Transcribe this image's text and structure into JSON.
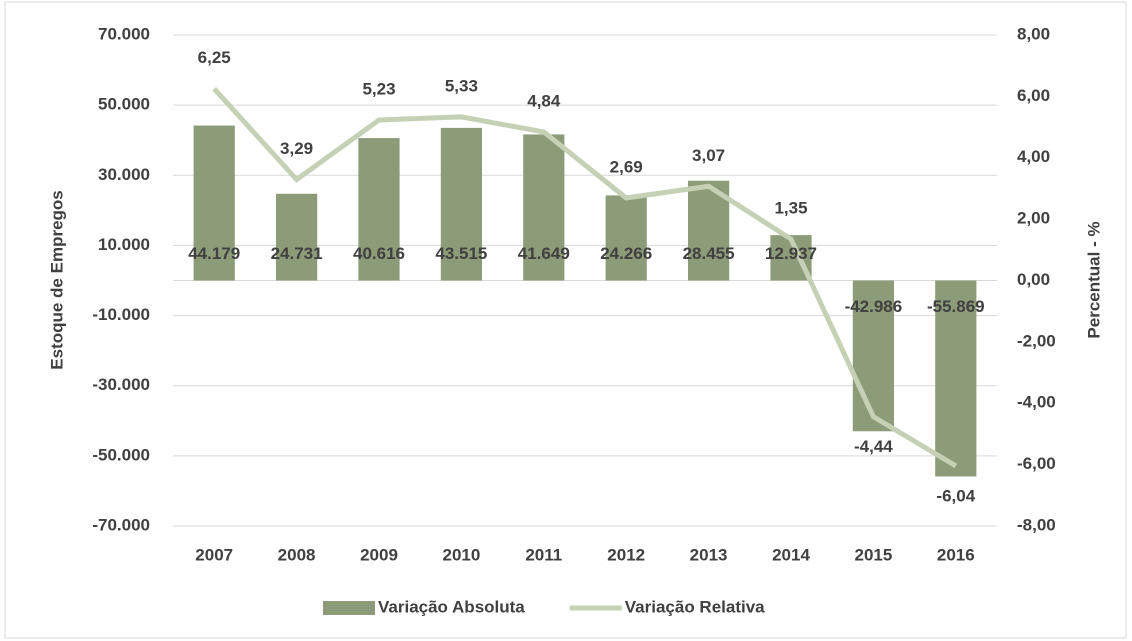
{
  "chart_data": {
    "type": "bar",
    "categories": [
      "2007",
      "2008",
      "2009",
      "2010",
      "2011",
      "2012",
      "2013",
      "2014",
      "2015",
      "2016"
    ],
    "series": [
      {
        "name": "Variação Absoluta",
        "type": "bar",
        "axis": "y",
        "color": "#8c9b78",
        "values": [
          44179,
          24731,
          40616,
          43515,
          41649,
          24266,
          28455,
          12937,
          -42986,
          -55869
        ],
        "value_labels": [
          "44.179",
          "24.731",
          "40.616",
          "43.515",
          "41.649",
          "24.266",
          "28.455",
          "12.937",
          "-42.986",
          "-55.869"
        ]
      },
      {
        "name": "Variação Relativa",
        "type": "line",
        "axis": "y2",
        "color": "#c5d0b5",
        "values": [
          6.25,
          3.29,
          5.23,
          5.33,
          4.84,
          2.69,
          3.07,
          1.35,
          -4.44,
          -6.04
        ],
        "value_labels": [
          "6,25",
          "3,29",
          "5,23",
          "5,33",
          "4,84",
          "2,69",
          "3,07",
          "1,35",
          "-4,44",
          "-6,04"
        ]
      }
    ],
    "y_label": "Estoque de Empregos",
    "y2_label": "Percentual - %",
    "ylim": [
      -70000,
      70000
    ],
    "yticks": [
      {
        "value": -70000,
        "label": "-70.000"
      },
      {
        "value": -50000,
        "label": "-50.000"
      },
      {
        "value": -30000,
        "label": "-30.000"
      },
      {
        "value": -10000,
        "label": "-10.000"
      },
      {
        "value": 10000,
        "label": "10.000"
      },
      {
        "value": 30000,
        "label": "30.000"
      },
      {
        "value": 50000,
        "label": "50.000"
      },
      {
        "value": 70000,
        "label": "70.000"
      }
    ],
    "y2lim": [
      -8,
      8
    ],
    "y2ticks": [
      {
        "value": -8,
        "label": "-8,00"
      },
      {
        "value": -6,
        "label": "-6,00"
      },
      {
        "value": -4,
        "label": "-4,00"
      },
      {
        "value": -2,
        "label": "-2,00"
      },
      {
        "value": 0,
        "label": "0,00"
      },
      {
        "value": 2,
        "label": "2,00"
      },
      {
        "value": 4,
        "label": "4,00"
      },
      {
        "value": 6,
        "label": "6,00"
      },
      {
        "value": 8,
        "label": "8,00"
      }
    ],
    "grid": true,
    "legend": "bottom"
  }
}
